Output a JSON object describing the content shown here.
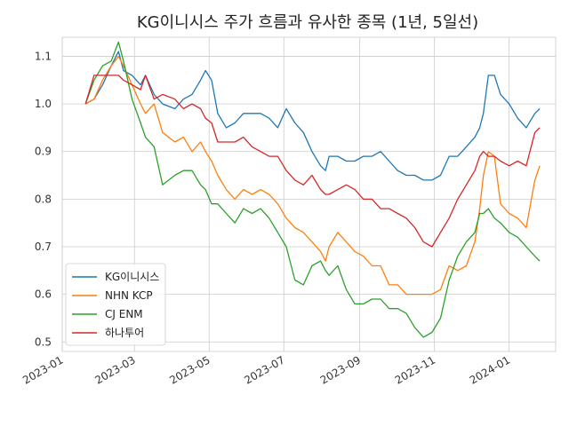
{
  "chart_data": {
    "type": "line",
    "title": "KG이니시스 주가 흐름과 유사한 종목 (1년, 5일선)",
    "xlabel": "",
    "ylabel": "",
    "xlim": [
      "2023-01-01",
      "2024-02-08"
    ],
    "ylim": [
      0.48,
      1.14
    ],
    "x_ticks": [
      "2023-01",
      "2023-03",
      "2023-05",
      "2023-07",
      "2023-09",
      "2023-11",
      "2024-01"
    ],
    "y_ticks": [
      "0.5",
      "0.6",
      "0.7",
      "0.8",
      "0.9",
      "1.0",
      "1.1"
    ],
    "grid": true,
    "legend_position": "lower-left",
    "series": [
      {
        "name": "KG이니시스",
        "color": "#1f77b4",
        "points": [
          [
            "2023-01-20",
            1.0
          ],
          [
            "2023-01-27",
            1.01
          ],
          [
            "2023-02-03",
            1.04
          ],
          [
            "2023-02-10",
            1.08
          ],
          [
            "2023-02-16",
            1.11
          ],
          [
            "2023-02-20",
            1.07
          ],
          [
            "2023-02-27",
            1.06
          ],
          [
            "2023-03-06",
            1.04
          ],
          [
            "2023-03-10",
            1.06
          ],
          [
            "2023-03-17",
            1.02
          ],
          [
            "2023-03-24",
            1.0
          ],
          [
            "2023-04-03",
            0.99
          ],
          [
            "2023-04-10",
            1.01
          ],
          [
            "2023-04-17",
            1.02
          ],
          [
            "2023-04-24",
            1.05
          ],
          [
            "2023-04-28",
            1.07
          ],
          [
            "2023-05-03",
            1.05
          ],
          [
            "2023-05-08",
            0.98
          ],
          [
            "2023-05-15",
            0.95
          ],
          [
            "2023-05-22",
            0.96
          ],
          [
            "2023-05-29",
            0.98
          ],
          [
            "2023-06-05",
            0.98
          ],
          [
            "2023-06-12",
            0.98
          ],
          [
            "2023-06-19",
            0.97
          ],
          [
            "2023-06-26",
            0.95
          ],
          [
            "2023-07-03",
            0.99
          ],
          [
            "2023-07-10",
            0.96
          ],
          [
            "2023-07-17",
            0.94
          ],
          [
            "2023-07-24",
            0.9
          ],
          [
            "2023-07-31",
            0.87
          ],
          [
            "2023-08-04",
            0.86
          ],
          [
            "2023-08-07",
            0.89
          ],
          [
            "2023-08-14",
            0.89
          ],
          [
            "2023-08-21",
            0.88
          ],
          [
            "2023-08-28",
            0.88
          ],
          [
            "2023-09-04",
            0.89
          ],
          [
            "2023-09-11",
            0.89
          ],
          [
            "2023-09-18",
            0.9
          ],
          [
            "2023-09-25",
            0.88
          ],
          [
            "2023-10-02",
            0.86
          ],
          [
            "2023-10-09",
            0.85
          ],
          [
            "2023-10-16",
            0.85
          ],
          [
            "2023-10-23",
            0.84
          ],
          [
            "2023-10-30",
            0.84
          ],
          [
            "2023-11-06",
            0.85
          ],
          [
            "2023-11-13",
            0.89
          ],
          [
            "2023-11-20",
            0.89
          ],
          [
            "2023-11-27",
            0.91
          ],
          [
            "2023-12-04",
            0.93
          ],
          [
            "2023-12-08",
            0.95
          ],
          [
            "2023-12-11",
            0.98
          ],
          [
            "2023-12-15",
            1.06
          ],
          [
            "2023-12-20",
            1.06
          ],
          [
            "2023-12-25",
            1.02
          ],
          [
            "2024-01-01",
            1.0
          ],
          [
            "2024-01-08",
            0.97
          ],
          [
            "2024-01-15",
            0.95
          ],
          [
            "2024-01-22",
            0.98
          ],
          [
            "2024-01-26",
            0.99
          ]
        ]
      },
      {
        "name": "NHN KCP",
        "color": "#ff7f0e",
        "points": [
          [
            "2023-01-20",
            1.0
          ],
          [
            "2023-01-27",
            1.01
          ],
          [
            "2023-02-03",
            1.05
          ],
          [
            "2023-02-10",
            1.08
          ],
          [
            "2023-02-16",
            1.1
          ],
          [
            "2023-02-20",
            1.08
          ],
          [
            "2023-02-27",
            1.04
          ],
          [
            "2023-03-06",
            1.0
          ],
          [
            "2023-03-10",
            0.98
          ],
          [
            "2023-03-17",
            1.0
          ],
          [
            "2023-03-24",
            0.94
          ],
          [
            "2023-04-03",
            0.92
          ],
          [
            "2023-04-10",
            0.93
          ],
          [
            "2023-04-17",
            0.9
          ],
          [
            "2023-04-24",
            0.92
          ],
          [
            "2023-04-28",
            0.9
          ],
          [
            "2023-05-03",
            0.88
          ],
          [
            "2023-05-08",
            0.85
          ],
          [
            "2023-05-15",
            0.82
          ],
          [
            "2023-05-22",
            0.8
          ],
          [
            "2023-05-29",
            0.82
          ],
          [
            "2023-06-05",
            0.81
          ],
          [
            "2023-06-12",
            0.82
          ],
          [
            "2023-06-19",
            0.81
          ],
          [
            "2023-06-26",
            0.79
          ],
          [
            "2023-07-03",
            0.76
          ],
          [
            "2023-07-10",
            0.74
          ],
          [
            "2023-07-17",
            0.73
          ],
          [
            "2023-07-24",
            0.71
          ],
          [
            "2023-07-31",
            0.69
          ],
          [
            "2023-08-04",
            0.67
          ],
          [
            "2023-08-07",
            0.7
          ],
          [
            "2023-08-14",
            0.73
          ],
          [
            "2023-08-21",
            0.71
          ],
          [
            "2023-08-28",
            0.69
          ],
          [
            "2023-09-04",
            0.68
          ],
          [
            "2023-09-11",
            0.66
          ],
          [
            "2023-09-18",
            0.66
          ],
          [
            "2023-09-25",
            0.62
          ],
          [
            "2023-10-02",
            0.62
          ],
          [
            "2023-10-09",
            0.6
          ],
          [
            "2023-10-16",
            0.6
          ],
          [
            "2023-10-23",
            0.6
          ],
          [
            "2023-10-30",
            0.6
          ],
          [
            "2023-11-06",
            0.61
          ],
          [
            "2023-11-13",
            0.66
          ],
          [
            "2023-11-20",
            0.65
          ],
          [
            "2023-11-27",
            0.66
          ],
          [
            "2023-12-04",
            0.71
          ],
          [
            "2023-12-08",
            0.78
          ],
          [
            "2023-12-11",
            0.85
          ],
          [
            "2023-12-15",
            0.9
          ],
          [
            "2023-12-20",
            0.89
          ],
          [
            "2023-12-25",
            0.79
          ],
          [
            "2024-01-01",
            0.77
          ],
          [
            "2024-01-08",
            0.76
          ],
          [
            "2024-01-15",
            0.74
          ],
          [
            "2024-01-22",
            0.84
          ],
          [
            "2024-01-26",
            0.87
          ]
        ]
      },
      {
        "name": "CJ ENM",
        "color": "#2ca02c",
        "points": [
          [
            "2023-01-20",
            1.0
          ],
          [
            "2023-01-27",
            1.05
          ],
          [
            "2023-02-03",
            1.08
          ],
          [
            "2023-02-10",
            1.09
          ],
          [
            "2023-02-16",
            1.13
          ],
          [
            "2023-02-20",
            1.09
          ],
          [
            "2023-02-27",
            1.01
          ],
          [
            "2023-03-06",
            0.96
          ],
          [
            "2023-03-10",
            0.93
          ],
          [
            "2023-03-17",
            0.91
          ],
          [
            "2023-03-24",
            0.83
          ],
          [
            "2023-04-03",
            0.85
          ],
          [
            "2023-04-10",
            0.86
          ],
          [
            "2023-04-17",
            0.86
          ],
          [
            "2023-04-24",
            0.83
          ],
          [
            "2023-04-28",
            0.82
          ],
          [
            "2023-05-03",
            0.79
          ],
          [
            "2023-05-08",
            0.79
          ],
          [
            "2023-05-15",
            0.77
          ],
          [
            "2023-05-22",
            0.75
          ],
          [
            "2023-05-29",
            0.78
          ],
          [
            "2023-06-05",
            0.77
          ],
          [
            "2023-06-12",
            0.78
          ],
          [
            "2023-06-19",
            0.76
          ],
          [
            "2023-06-26",
            0.73
          ],
          [
            "2023-07-03",
            0.7
          ],
          [
            "2023-07-10",
            0.63
          ],
          [
            "2023-07-17",
            0.62
          ],
          [
            "2023-07-24",
            0.66
          ],
          [
            "2023-07-31",
            0.67
          ],
          [
            "2023-08-04",
            0.65
          ],
          [
            "2023-08-07",
            0.64
          ],
          [
            "2023-08-14",
            0.66
          ],
          [
            "2023-08-21",
            0.61
          ],
          [
            "2023-08-28",
            0.58
          ],
          [
            "2023-09-04",
            0.58
          ],
          [
            "2023-09-11",
            0.59
          ],
          [
            "2023-09-18",
            0.59
          ],
          [
            "2023-09-25",
            0.57
          ],
          [
            "2023-10-02",
            0.57
          ],
          [
            "2023-10-09",
            0.56
          ],
          [
            "2023-10-16",
            0.53
          ],
          [
            "2023-10-23",
            0.51
          ],
          [
            "2023-10-30",
            0.52
          ],
          [
            "2023-11-06",
            0.55
          ],
          [
            "2023-11-13",
            0.63
          ],
          [
            "2023-11-20",
            0.68
          ],
          [
            "2023-11-27",
            0.71
          ],
          [
            "2023-12-04",
            0.73
          ],
          [
            "2023-12-08",
            0.77
          ],
          [
            "2023-12-11",
            0.77
          ],
          [
            "2023-12-15",
            0.78
          ],
          [
            "2023-12-20",
            0.76
          ],
          [
            "2023-12-25",
            0.75
          ],
          [
            "2024-01-01",
            0.73
          ],
          [
            "2024-01-08",
            0.72
          ],
          [
            "2024-01-15",
            0.7
          ],
          [
            "2024-01-22",
            0.68
          ],
          [
            "2024-01-26",
            0.67
          ]
        ]
      },
      {
        "name": "하나투어",
        "color": "#d62728",
        "points": [
          [
            "2023-01-20",
            1.0
          ],
          [
            "2023-01-27",
            1.06
          ],
          [
            "2023-02-03",
            1.06
          ],
          [
            "2023-02-10",
            1.06
          ],
          [
            "2023-02-16",
            1.06
          ],
          [
            "2023-02-20",
            1.05
          ],
          [
            "2023-02-27",
            1.04
          ],
          [
            "2023-03-06",
            1.03
          ],
          [
            "2023-03-10",
            1.06
          ],
          [
            "2023-03-17",
            1.01
          ],
          [
            "2023-03-24",
            1.02
          ],
          [
            "2023-04-03",
            1.01
          ],
          [
            "2023-04-10",
            0.99
          ],
          [
            "2023-04-17",
            1.0
          ],
          [
            "2023-04-24",
            0.99
          ],
          [
            "2023-04-28",
            0.97
          ],
          [
            "2023-05-03",
            0.96
          ],
          [
            "2023-05-08",
            0.92
          ],
          [
            "2023-05-15",
            0.92
          ],
          [
            "2023-05-22",
            0.92
          ],
          [
            "2023-05-29",
            0.93
          ],
          [
            "2023-06-05",
            0.91
          ],
          [
            "2023-06-12",
            0.9
          ],
          [
            "2023-06-19",
            0.89
          ],
          [
            "2023-06-26",
            0.89
          ],
          [
            "2023-07-03",
            0.86
          ],
          [
            "2023-07-10",
            0.84
          ],
          [
            "2023-07-17",
            0.83
          ],
          [
            "2023-07-24",
            0.85
          ],
          [
            "2023-07-31",
            0.82
          ],
          [
            "2023-08-04",
            0.81
          ],
          [
            "2023-08-07",
            0.81
          ],
          [
            "2023-08-14",
            0.82
          ],
          [
            "2023-08-21",
            0.83
          ],
          [
            "2023-08-28",
            0.82
          ],
          [
            "2023-09-04",
            0.8
          ],
          [
            "2023-09-11",
            0.8
          ],
          [
            "2023-09-18",
            0.78
          ],
          [
            "2023-09-25",
            0.78
          ],
          [
            "2023-10-02",
            0.77
          ],
          [
            "2023-10-09",
            0.76
          ],
          [
            "2023-10-16",
            0.74
          ],
          [
            "2023-10-23",
            0.71
          ],
          [
            "2023-10-30",
            0.7
          ],
          [
            "2023-11-06",
            0.73
          ],
          [
            "2023-11-13",
            0.76
          ],
          [
            "2023-11-20",
            0.8
          ],
          [
            "2023-11-27",
            0.83
          ],
          [
            "2023-12-04",
            0.86
          ],
          [
            "2023-12-08",
            0.89
          ],
          [
            "2023-12-11",
            0.9
          ],
          [
            "2023-12-15",
            0.89
          ],
          [
            "2023-12-20",
            0.89
          ],
          [
            "2023-12-25",
            0.88
          ],
          [
            "2024-01-01",
            0.87
          ],
          [
            "2024-01-08",
            0.88
          ],
          [
            "2024-01-15",
            0.87
          ],
          [
            "2024-01-22",
            0.94
          ],
          [
            "2024-01-26",
            0.95
          ]
        ]
      }
    ]
  }
}
